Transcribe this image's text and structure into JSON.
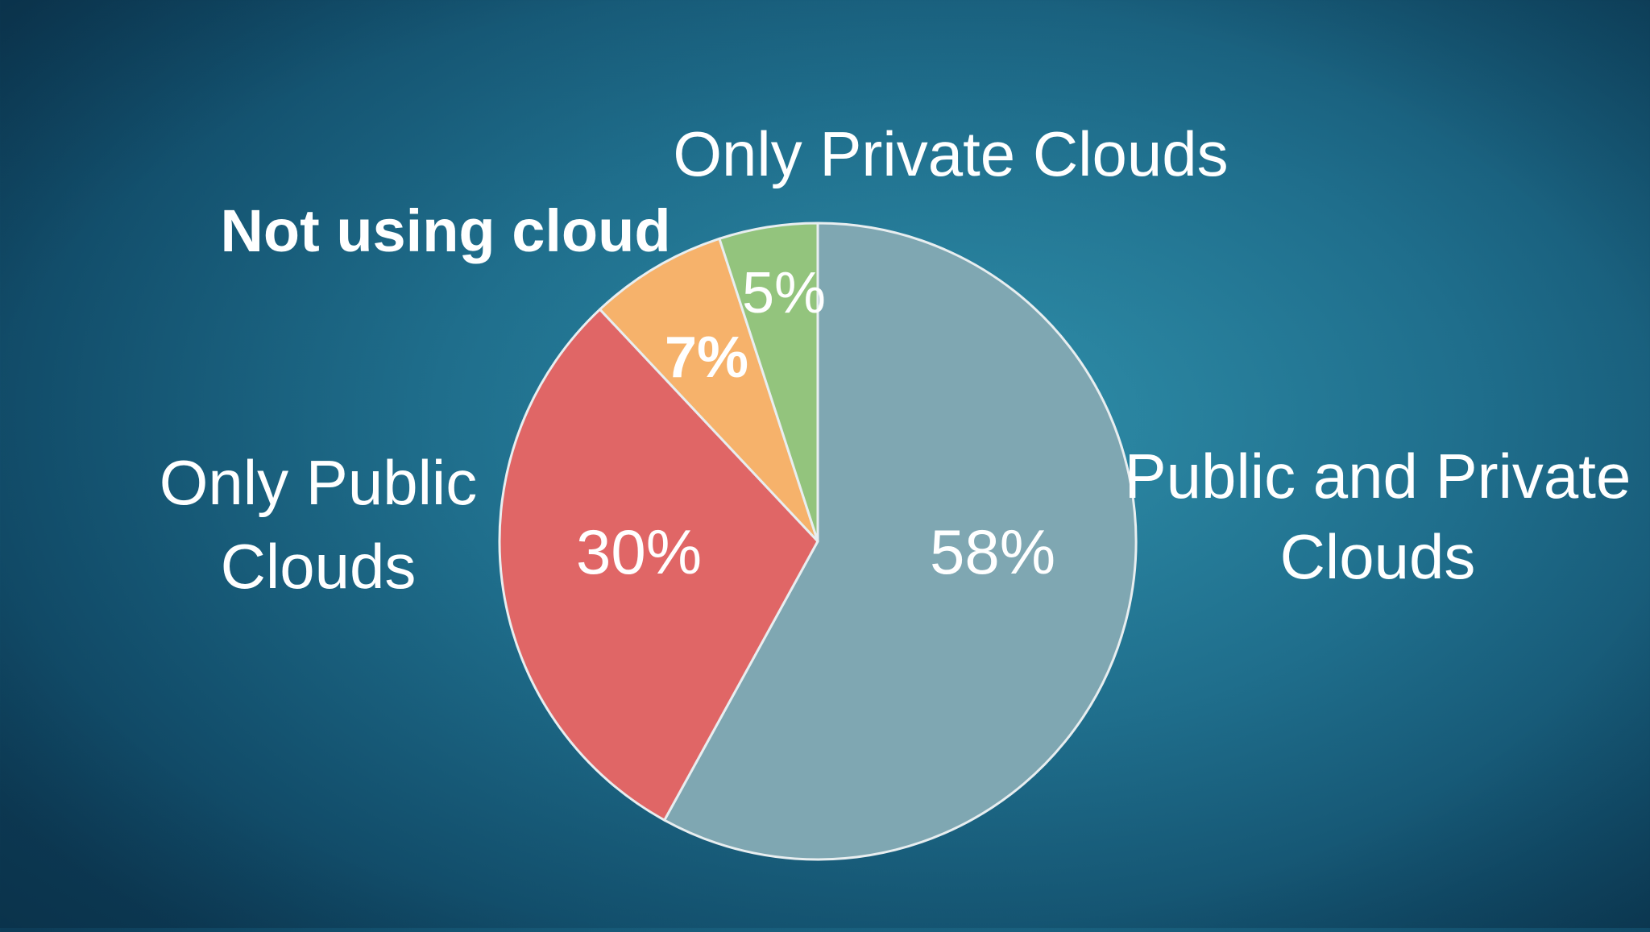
{
  "colors": {
    "background": "#1f6e8c",
    "slice_outline": "#e8eef0",
    "label_text": "#ffffff"
  },
  "chart_data": {
    "type": "pie",
    "start": "12 o'clock",
    "direction": "clockwise",
    "slices": [
      {
        "label": "Public and Private Clouds",
        "value": 58,
        "display": "58%",
        "color": "#7fa7b2",
        "label_lines": [
          "Public and Private",
          "Clouds"
        ],
        "bold": false
      },
      {
        "label": "Only Public Clouds",
        "value": 30,
        "display": "30%",
        "color": "#e06666",
        "label_lines": [
          "Only Public",
          "Clouds"
        ],
        "bold": false
      },
      {
        "label": "Not using cloud",
        "value": 7,
        "display": "7%",
        "color": "#f6b26b",
        "label_lines": [
          "Not using cloud"
        ],
        "bold": true
      },
      {
        "label": "Only Private Clouds",
        "value": 5,
        "display": "5%",
        "color": "#93c47d",
        "label_lines": [
          "Only Private Clouds"
        ],
        "bold": false
      }
    ]
  }
}
